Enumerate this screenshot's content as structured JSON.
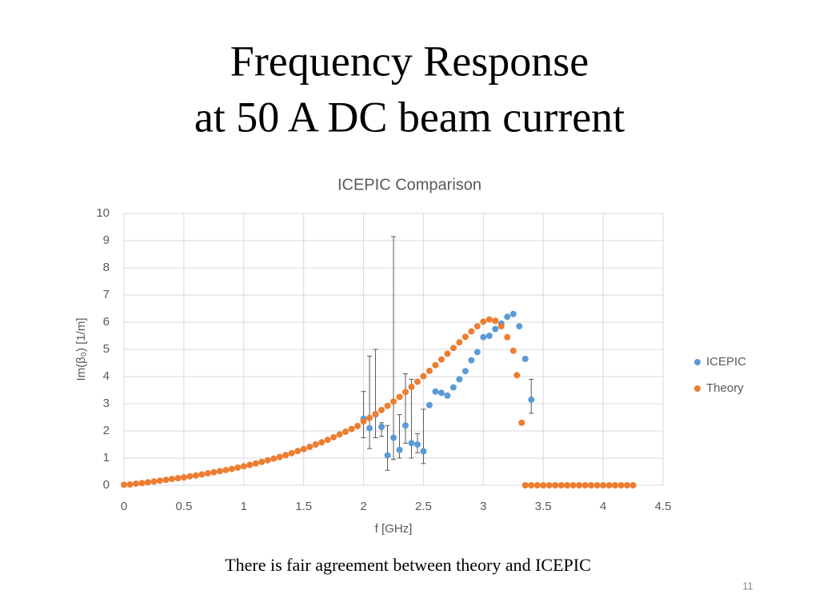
{
  "slide": {
    "heading": [
      "Frequency Response",
      "at 50 A DC beam current"
    ],
    "caption": "There is fair agreement between theory and ICEPIC",
    "page_number": "11"
  },
  "chart_data": {
    "type": "scatter",
    "title": "ICEPIC Comparison",
    "x_label": "f [GHz]",
    "y_label": "Im(β₀) [1/m]",
    "xlim": [
      0,
      4.5
    ],
    "xticks": [
      0,
      0.5,
      1,
      1.5,
      2,
      2.5,
      3,
      3.5,
      4,
      4.5
    ],
    "ylim": [
      0,
      10
    ],
    "yticks": [
      0,
      1,
      2,
      3,
      4,
      5,
      6,
      7,
      8,
      9,
      10
    ],
    "grid": true,
    "legend": "right",
    "series": [
      {
        "name": "ICEPIC",
        "color": "#5b9bd5",
        "x": [
          2.0,
          2.05,
          2.1,
          2.15,
          2.2,
          2.25,
          2.3,
          2.35,
          2.4,
          2.45,
          2.5,
          2.55,
          2.6,
          2.65,
          2.7,
          2.75,
          2.8,
          2.85,
          2.9,
          2.95,
          3.0,
          3.05,
          3.1,
          3.15,
          3.2,
          3.25,
          3.3,
          3.35,
          3.4
        ],
        "values": [
          2.45,
          2.1,
          2.6,
          2.15,
          1.1,
          1.75,
          1.3,
          2.2,
          1.55,
          1.5,
          1.25,
          2.95,
          3.45,
          3.4,
          3.3,
          3.6,
          3.9,
          4.2,
          4.6,
          4.9,
          5.45,
          5.5,
          5.75,
          5.95,
          6.2,
          6.3,
          5.85,
          4.65,
          3.15
        ],
        "err_low": [
          0.7,
          0.75,
          0.85,
          0.35,
          0.55,
          0.8,
          0.3,
          0.65,
          0.55,
          0.3,
          0.45,
          0,
          0,
          0,
          0,
          0,
          0,
          0,
          0,
          0,
          0,
          0,
          0,
          0,
          0,
          0,
          0,
          0,
          0.5
        ],
        "err_high": [
          1.0,
          2.65,
          2.4,
          0.15,
          1.1,
          7.4,
          1.3,
          1.9,
          2.35,
          0.4,
          1.55,
          0,
          0,
          0,
          0,
          0,
          0,
          0,
          0,
          0,
          0,
          0,
          0,
          0,
          0,
          0,
          0,
          0,
          0.75
        ]
      },
      {
        "name": "Theory",
        "color": "#ed7d31",
        "x": [
          0,
          0.05,
          0.1,
          0.15,
          0.2,
          0.25,
          0.3,
          0.35,
          0.4,
          0.45,
          0.5,
          0.55,
          0.6,
          0.65,
          0.7,
          0.75,
          0.8,
          0.85,
          0.9,
          0.95,
          1.0,
          1.05,
          1.1,
          1.15,
          1.2,
          1.25,
          1.3,
          1.35,
          1.4,
          1.45,
          1.5,
          1.55,
          1.6,
          1.65,
          1.7,
          1.75,
          1.8,
          1.85,
          1.9,
          1.95,
          2.0,
          2.05,
          2.1,
          2.15,
          2.2,
          2.25,
          2.3,
          2.35,
          2.4,
          2.45,
          2.5,
          2.55,
          2.6,
          2.65,
          2.7,
          2.75,
          2.8,
          2.85,
          2.9,
          2.95,
          3.0,
          3.05,
          3.1,
          3.15,
          3.2,
          3.25,
          3.28,
          3.32,
          3.35,
          3.4,
          3.45,
          3.5,
          3.55,
          3.6,
          3.65,
          3.7,
          3.75,
          3.8,
          3.85,
          3.9,
          3.95,
          4.0,
          4.05,
          4.1,
          4.15,
          4.2,
          4.25
        ],
        "values": [
          0.02,
          0.03,
          0.06,
          0.08,
          0.11,
          0.14,
          0.17,
          0.2,
          0.23,
          0.26,
          0.29,
          0.33,
          0.36,
          0.4,
          0.44,
          0.48,
          0.52,
          0.56,
          0.6,
          0.65,
          0.7,
          0.75,
          0.8,
          0.86,
          0.92,
          0.98,
          1.04,
          1.11,
          1.18,
          1.26,
          1.33,
          1.41,
          1.5,
          1.58,
          1.67,
          1.77,
          1.87,
          1.97,
          2.07,
          2.18,
          2.35,
          2.48,
          2.62,
          2.77,
          2.92,
          3.08,
          3.25,
          3.43,
          3.62,
          3.81,
          4.01,
          4.21,
          4.42,
          4.63,
          4.84,
          5.05,
          5.26,
          5.46,
          5.66,
          5.85,
          6.02,
          6.1,
          6.05,
          5.85,
          5.45,
          4.95,
          4.05,
          2.3,
          0,
          0,
          0,
          0,
          0,
          0,
          0,
          0,
          0,
          0,
          0,
          0,
          0,
          0,
          0,
          0,
          0,
          0,
          0
        ]
      }
    ]
  }
}
